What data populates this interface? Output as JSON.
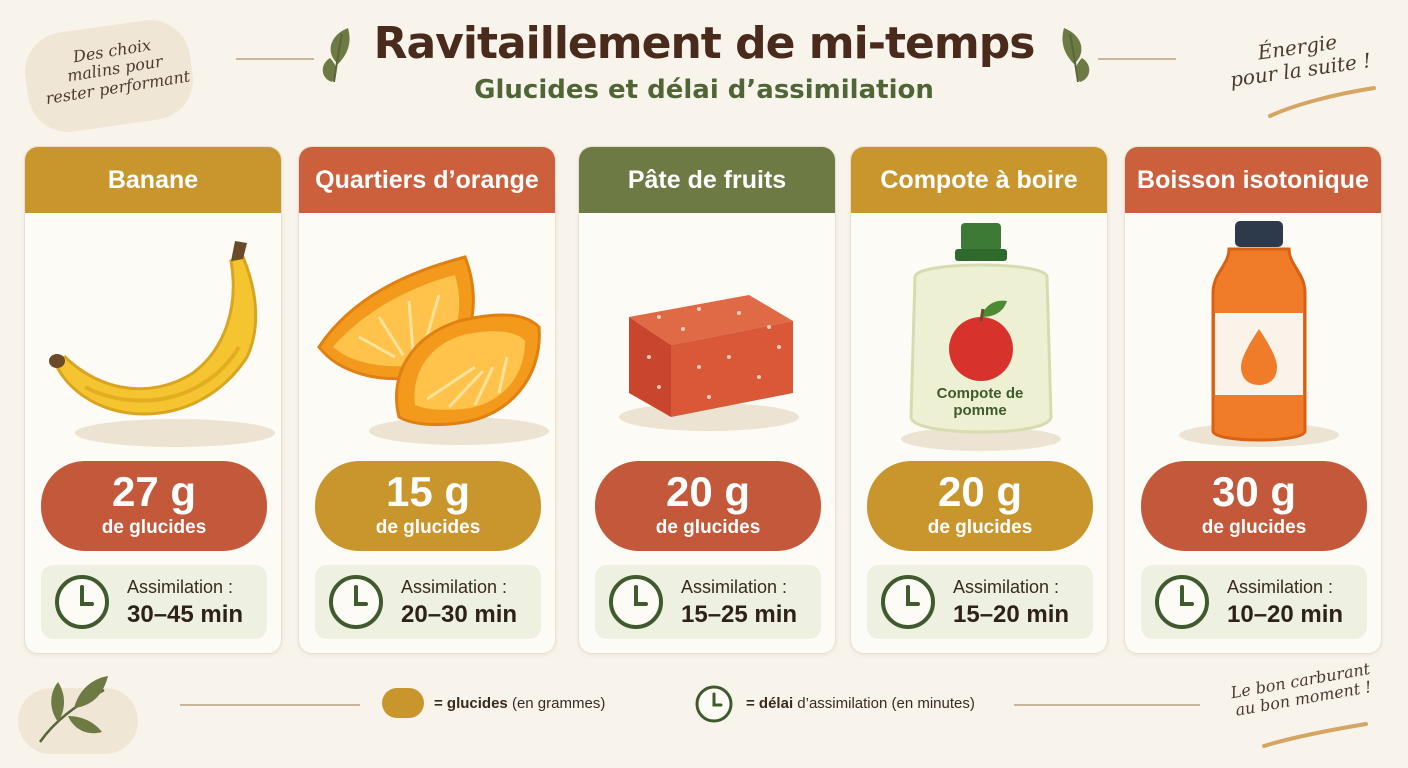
{
  "header": {
    "title": "Ravitaillement de mi-temps",
    "subtitle": "Glucides et délai d’assimilation"
  },
  "notes": {
    "top_left": [
      "Des choix",
      "malins pour",
      "rester performant"
    ],
    "top_right": [
      "Énergie",
      "pour la suite !"
    ],
    "bottom_right": [
      "Le bon carburant",
      "au bon moment !"
    ]
  },
  "colors": {
    "rust": "#c4583a",
    "orange_rust": "#cc5f3c",
    "ochre": "#c9962e",
    "olive": "#6d7a44",
    "green_dark": "#3f5a2c"
  },
  "items": [
    {
      "name": "Banane",
      "carbs_value": "27 g",
      "carbs_unit": "de glucides",
      "assim_label": "Assimilation :",
      "assim_time": "30–45 min",
      "head_color": "#c9962e",
      "pill_color": "#c4583a",
      "image": "banana-image"
    },
    {
      "name": "Quartiers d’orange",
      "carbs_value": "15 g",
      "carbs_unit": "de glucides",
      "assim_label": "Assimilation :",
      "assim_time": "20–30 min",
      "head_color": "#cc5f3c",
      "pill_color": "#c9962e",
      "image": "orange-image"
    },
    {
      "name": "Pâte de fruits",
      "carbs_value": "20 g",
      "carbs_unit": "de glucides",
      "assim_label": "Assimilation :",
      "assim_time": "15–25 min",
      "head_color": "#6d7a44",
      "pill_color": "#c4583a",
      "image": "fruit-jelly-image"
    },
    {
      "name": "Compote à boire",
      "carbs_value": "20 g",
      "carbs_unit": "de glucides",
      "assim_label": "Assimilation :",
      "assim_time": "15–20 min",
      "head_color": "#c9962e",
      "pill_color": "#c9962e",
      "image": "compote-pouch-image",
      "pouch_label": "Compote de pomme"
    },
    {
      "name": "Boisson isotonique",
      "carbs_value": "30 g",
      "carbs_unit": "de glucides",
      "assim_label": "Assimilation :",
      "assim_time": "10–20 min",
      "head_color": "#cc5f3c",
      "pill_color": "#c4583a",
      "image": "sports-drink-image"
    }
  ],
  "legend": {
    "carbs_key": "= glucides",
    "carbs_desc": "(en grammes)",
    "time_key": "= délai",
    "time_desc": "d’assimilation (en minutes)"
  }
}
